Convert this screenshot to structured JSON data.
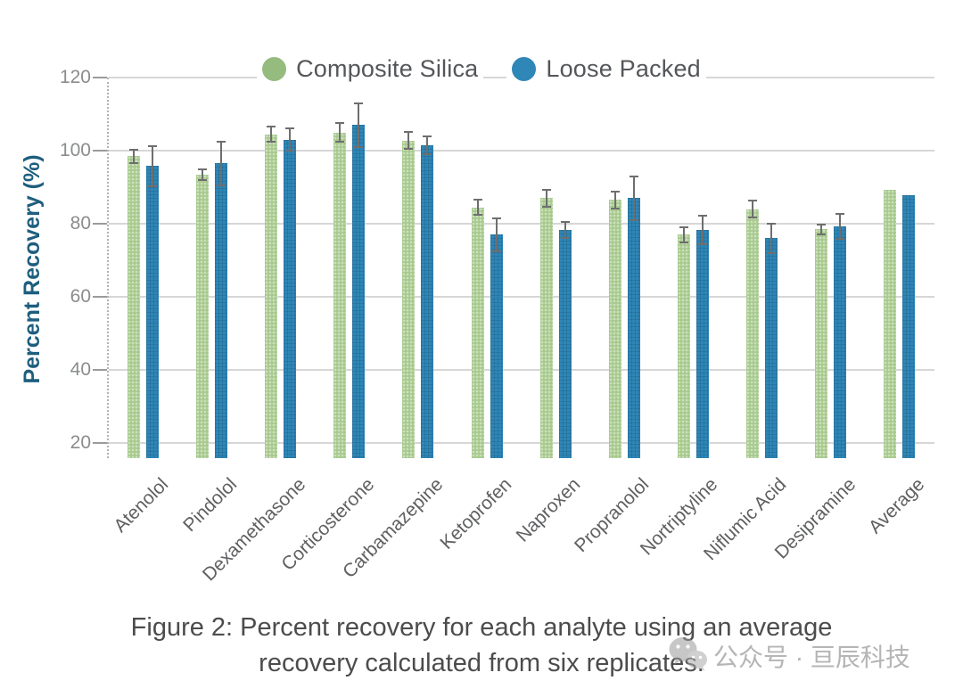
{
  "legend": [
    {
      "label": "Composite Silica",
      "color": "#95bc7e"
    },
    {
      "label": "Loose Packed",
      "color": "#2f87b8"
    }
  ],
  "chart_data": {
    "type": "bar",
    "title": "",
    "ylabel": "Percent Recovery (%)",
    "xlabel": "",
    "yticks": [
      20,
      40,
      60,
      80,
      100,
      120
    ],
    "ylim": [
      20,
      120
    ],
    "grid": true,
    "legend_position": "top",
    "categories": [
      "Atenolol",
      "Pindolol",
      "Dexamethasone",
      "Corticosterone",
      "Carbamazepine",
      "Ketoprofen",
      "Naproxen",
      "Propranolol",
      "Nortriptyline",
      "Niflumic Acid",
      "Desipramine",
      "Average"
    ],
    "series": [
      {
        "name": "Composite Silica",
        "color": "#a6c98c",
        "values": [
          98.5,
          93.5,
          104.5,
          105.0,
          102.8,
          84.5,
          87.0,
          86.5,
          77.0,
          84.0,
          78.5,
          89.3
        ],
        "errors": [
          1.8,
          1.5,
          2.0,
          2.5,
          2.3,
          2.0,
          2.3,
          2.3,
          2.0,
          2.3,
          1.3,
          0
        ]
      },
      {
        "name": "Loose Packed",
        "color": "#2e86b7",
        "values": [
          95.8,
          96.5,
          103.0,
          107.0,
          101.5,
          77.0,
          78.3,
          87.0,
          78.3,
          76.0,
          79.3,
          87.8
        ],
        "errors": [
          5.5,
          6.0,
          3.0,
          6.0,
          2.5,
          4.5,
          2.3,
          6.0,
          4.0,
          4.0,
          3.5,
          0
        ]
      }
    ]
  },
  "caption": {
    "line1": "Figure 2: Percent recovery for each analyte using an average",
    "line2": "recovery calculated from six replicates."
  },
  "watermark": {
    "icon": "wechat-icon",
    "text": "公众号 · 亘辰科技"
  }
}
